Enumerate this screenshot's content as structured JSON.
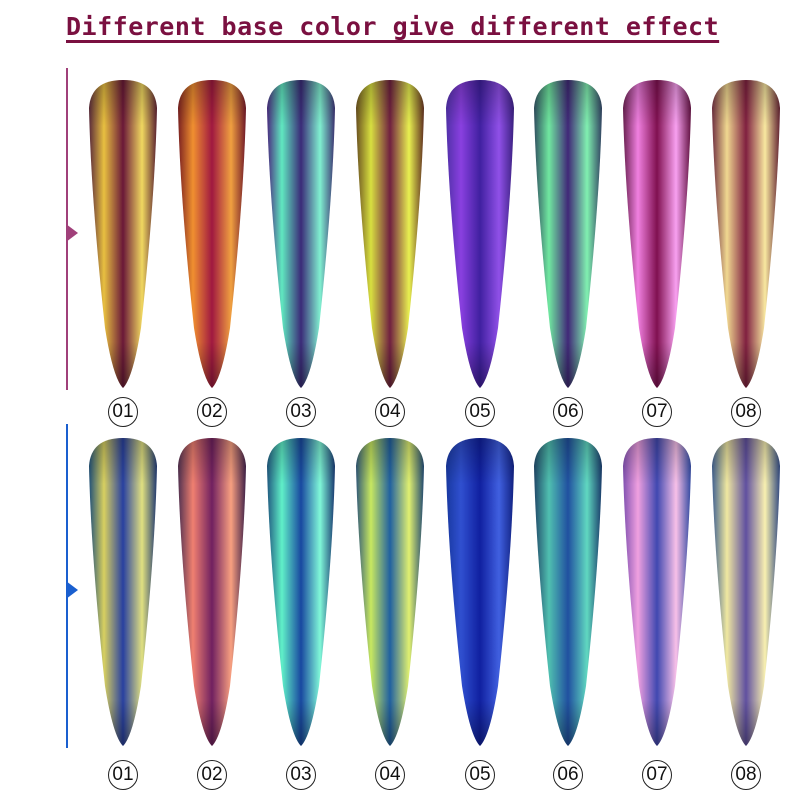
{
  "title": "Different base color give different effect",
  "colors": {
    "title": "#7a1040",
    "row1_accent": "#a0407a",
    "row2_accent": "#1a5fcf"
  },
  "rows": [
    {
      "accent": "#a0407a",
      "nails": [
        {
          "label": "01",
          "colors": [
            "#5a2a3a",
            "#e8c040",
            "#6a1838",
            "#f0d860",
            "#5a2030"
          ]
        },
        {
          "label": "02",
          "colors": [
            "#7a2020",
            "#f09030",
            "#a01840",
            "#f0a040",
            "#701828"
          ]
        },
        {
          "label": "03",
          "colors": [
            "#4a2a80",
            "#60e8c0",
            "#3a2a78",
            "#80f0d0",
            "#3a3070"
          ]
        },
        {
          "label": "04",
          "colors": [
            "#6a5020",
            "#d8e040",
            "#702040",
            "#e8f050",
            "#603020"
          ]
        },
        {
          "label": "05",
          "colors": [
            "#5030a8",
            "#8a40e0",
            "#4020a0",
            "#9050e8",
            "#3a2080"
          ]
        },
        {
          "label": "06",
          "colors": [
            "#305060",
            "#70e8a0",
            "#402878",
            "#80f0b0",
            "#304060"
          ]
        },
        {
          "label": "07",
          "colors": [
            "#6a2050",
            "#f080e0",
            "#801050",
            "#f8a0f0",
            "#601040"
          ]
        },
        {
          "label": "08",
          "colors": [
            "#703040",
            "#f0d890",
            "#802040",
            "#f8e8a0",
            "#602030"
          ]
        }
      ]
    },
    {
      "accent": "#1a5fcf",
      "nails": [
        {
          "label": "01",
          "colors": [
            "#205078",
            "#d8d060",
            "#2840a0",
            "#e0e080",
            "#203870"
          ]
        },
        {
          "label": "02",
          "colors": [
            "#503050",
            "#f08070",
            "#702060",
            "#f8a080",
            "#402048"
          ]
        },
        {
          "label": "03",
          "colors": [
            "#205880",
            "#60f0c8",
            "#1848a0",
            "#80f8d8",
            "#183870"
          ]
        },
        {
          "label": "04",
          "colors": [
            "#305878",
            "#c8e860",
            "#2060a0",
            "#e0f070",
            "#204870"
          ]
        },
        {
          "label": "05",
          "colors": [
            "#1838a0",
            "#3050d0",
            "#1020a0",
            "#4060e0",
            "#102080"
          ]
        },
        {
          "label": "06",
          "colors": [
            "#204868",
            "#50c0b0",
            "#2050a0",
            "#60d8c0",
            "#183868"
          ]
        },
        {
          "label": "07",
          "colors": [
            "#8050b0",
            "#f0a0e0",
            "#4048b0",
            "#f8c0e8",
            "#3048a0"
          ]
        },
        {
          "label": "08",
          "colors": [
            "#406090",
            "#f0e8a0",
            "#6050a0",
            "#f8f0b0",
            "#304880"
          ]
        }
      ]
    }
  ]
}
